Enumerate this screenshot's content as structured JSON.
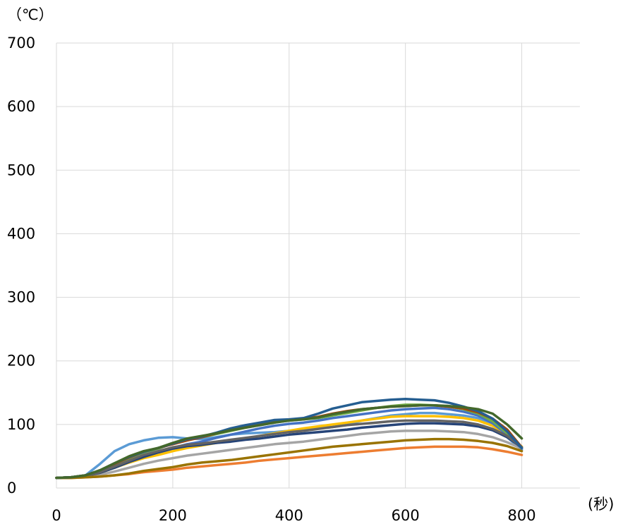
{
  "chart_data": {
    "type": "line",
    "y_unit_label": "（℃）",
    "x_unit_label": "(秒)",
    "xlim": [
      0,
      900
    ],
    "ylim": [
      0,
      700
    ],
    "x_ticks": [
      0,
      200,
      400,
      600,
      800
    ],
    "y_ticks": [
      0,
      100,
      200,
      300,
      400,
      500,
      600,
      700
    ],
    "grid": "major both axes",
    "legend": "none",
    "x": [
      0,
      25,
      50,
      75,
      100,
      125,
      150,
      175,
      200,
      225,
      250,
      275,
      300,
      325,
      350,
      375,
      400,
      425,
      450,
      475,
      500,
      525,
      550,
      575,
      600,
      625,
      650,
      675,
      700,
      725,
      750,
      775,
      800
    ],
    "series": [
      {
        "color": "#5b9bd5",
        "values": [
          16,
          17,
          20,
          38,
          58,
          69,
          75,
          79,
          80,
          78,
          77,
          80,
          84,
          86,
          87,
          88,
          90,
          92,
          94,
          96,
          100,
          106,
          110,
          114,
          116,
          118,
          118,
          116,
          114,
          110,
          100,
          80,
          60
        ]
      },
      {
        "color": "#ed7d31",
        "values": [
          16,
          16,
          17,
          18,
          20,
          22,
          25,
          27,
          29,
          32,
          34,
          36,
          38,
          40,
          43,
          45,
          47,
          49,
          51,
          53,
          55,
          57,
          59,
          61,
          63,
          64,
          65,
          65,
          65,
          64,
          61,
          57,
          52
        ]
      },
      {
        "color": "#a5a5a5",
        "values": [
          16,
          17,
          18,
          21,
          26,
          32,
          38,
          43,
          47,
          51,
          54,
          57,
          60,
          63,
          66,
          69,
          71,
          73,
          76,
          79,
          82,
          85,
          87,
          89,
          90,
          90,
          90,
          89,
          88,
          85,
          80,
          72,
          62
        ]
      },
      {
        "color": "#ffc000",
        "values": [
          16,
          17,
          19,
          24,
          32,
          40,
          47,
          52,
          58,
          63,
          67,
          71,
          74,
          78,
          82,
          86,
          90,
          94,
          97,
          100,
          103,
          106,
          109,
          112,
          113,
          113,
          113,
          112,
          110,
          106,
          98,
          84,
          65
        ]
      },
      {
        "color": "#4472c4",
        "values": [
          16,
          17,
          19,
          25,
          34,
          43,
          51,
          57,
          63,
          69,
          73,
          79,
          84,
          89,
          94,
          98,
          101,
          103,
          106,
          110,
          113,
          116,
          119,
          122,
          124,
          125,
          126,
          124,
          120,
          114,
          102,
          84,
          62
        ]
      },
      {
        "color": "#70ad47",
        "values": [
          16,
          17,
          20,
          27,
          37,
          47,
          56,
          62,
          70,
          76,
          80,
          85,
          90,
          95,
          99,
          103,
          106,
          108,
          110,
          114,
          118,
          122,
          126,
          129,
          131,
          131,
          130,
          128,
          124,
          117,
          105,
          86,
          63
        ]
      },
      {
        "color": "#264478",
        "values": [
          16,
          17,
          19,
          24,
          32,
          41,
          49,
          56,
          62,
          66,
          68,
          71,
          73,
          76,
          78,
          81,
          84,
          86,
          88,
          90,
          92,
          95,
          97,
          99,
          101,
          102,
          102,
          101,
          100,
          97,
          91,
          80,
          64
        ]
      },
      {
        "color": "#9e480e",
        "values": [
          16,
          17,
          20,
          28,
          38,
          48,
          57,
          63,
          69,
          75,
          80,
          86,
          92,
          97,
          101,
          105,
          107,
          109,
          112,
          117,
          121,
          124,
          126,
          128,
          129,
          130,
          130,
          128,
          125,
          119,
          109,
          92,
          64
        ]
      },
      {
        "color": "#636363",
        "values": [
          16,
          17,
          19,
          25,
          34,
          43,
          52,
          58,
          64,
          68,
          70,
          73,
          76,
          79,
          82,
          85,
          88,
          90,
          93,
          96,
          99,
          101,
          103,
          105,
          106,
          106,
          106,
          105,
          104,
          100,
          93,
          82,
          64
        ]
      },
      {
        "color": "#997300",
        "values": [
          16,
          16,
          17,
          18,
          20,
          23,
          27,
          30,
          33,
          37,
          40,
          42,
          44,
          47,
          50,
          53,
          56,
          59,
          62,
          65,
          67,
          69,
          71,
          73,
          75,
          76,
          77,
          77,
          76,
          74,
          71,
          66,
          58
        ]
      },
      {
        "color": "#255e91",
        "values": [
          16,
          17,
          20,
          28,
          39,
          49,
          57,
          63,
          70,
          77,
          81,
          87,
          94,
          99,
          103,
          107,
          108,
          110,
          117,
          125,
          130,
          135,
          137,
          139,
          140,
          139,
          138,
          134,
          128,
          121,
          109,
          89,
          63
        ]
      },
      {
        "color": "#43682b",
        "values": [
          16,
          17,
          20,
          28,
          39,
          50,
          58,
          63,
          71,
          78,
          82,
          86,
          91,
          95,
          99,
          103,
          106,
          108,
          111,
          116,
          120,
          124,
          126,
          128,
          129,
          130,
          130,
          129,
          127,
          124,
          117,
          100,
          78
        ]
      }
    ]
  }
}
